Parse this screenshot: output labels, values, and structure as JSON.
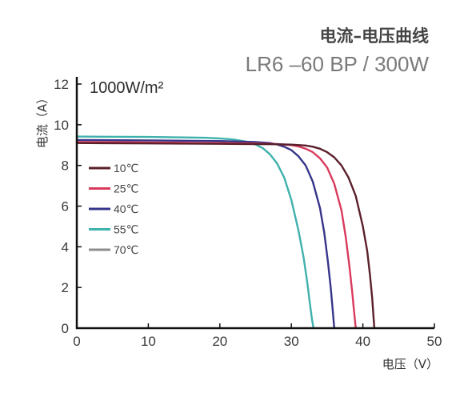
{
  "chart_data": {
    "type": "line",
    "title": "电流–电压曲线",
    "subtitle": "LR6 –60 BP / 300W",
    "irradiance_label": "1000W/m²",
    "xlabel": "电压（V）",
    "ylabel": "电流（A）",
    "xlim": [
      0,
      50
    ],
    "ylim": [
      0,
      12
    ],
    "xticks": [
      "0",
      "10",
      "20",
      "30",
      "40",
      "50"
    ],
    "yticks": [
      "0",
      "2",
      "4",
      "6",
      "8",
      "10",
      "12"
    ],
    "legend_position": "left",
    "series": [
      {
        "name": "10℃",
        "color": "#5a1f2a",
        "x": [
          0,
          10,
          20,
          25,
          28,
          30,
          32,
          33,
          34,
          35,
          36,
          37,
          38,
          39,
          40,
          40.6,
          41.0,
          41.3,
          41.5,
          41.6
        ],
        "y": [
          9.1,
          9.08,
          9.06,
          9.05,
          9.04,
          9.02,
          8.98,
          8.92,
          8.82,
          8.65,
          8.4,
          8.0,
          7.4,
          6.5,
          5.0,
          3.8,
          2.6,
          1.5,
          0.5,
          0
        ]
      },
      {
        "name": "25℃",
        "color": "#d93a5c",
        "x": [
          0,
          10,
          20,
          25,
          28,
          30,
          31,
          32,
          33,
          34,
          35,
          36,
          37,
          37.6,
          38.1,
          38.5,
          38.8,
          39.0
        ],
        "y": [
          9.15,
          9.13,
          9.1,
          9.08,
          9.05,
          9.0,
          8.93,
          8.82,
          8.65,
          8.35,
          7.9,
          7.1,
          5.8,
          4.5,
          3.1,
          1.8,
          0.7,
          0
        ]
      },
      {
        "name": "40℃",
        "color": "#36358a",
        "x": [
          0,
          10,
          20,
          25,
          27,
          28,
          29,
          30,
          31,
          32,
          33,
          34,
          34.6,
          35.1,
          35.5,
          35.8,
          36.0
        ],
        "y": [
          9.25,
          9.23,
          9.2,
          9.15,
          9.1,
          9.03,
          8.92,
          8.75,
          8.45,
          8.0,
          7.2,
          5.9,
          4.7,
          3.3,
          2.0,
          0.8,
          0
        ]
      },
      {
        "name": "55℃",
        "color": "#3fb1ac",
        "x": [
          0,
          10,
          18,
          20,
          22,
          24,
          25,
          26,
          27,
          28,
          29,
          30,
          31,
          31.7,
          32.2,
          32.6,
          32.9,
          33.1
        ],
        "y": [
          9.42,
          9.4,
          9.36,
          9.33,
          9.27,
          9.15,
          9.03,
          8.85,
          8.55,
          8.1,
          7.4,
          6.3,
          4.8,
          3.5,
          2.3,
          1.2,
          0.4,
          0
        ]
      },
      {
        "name": "70℃",
        "color": "#8c8c8c",
        "x": [],
        "y": []
      }
    ]
  }
}
